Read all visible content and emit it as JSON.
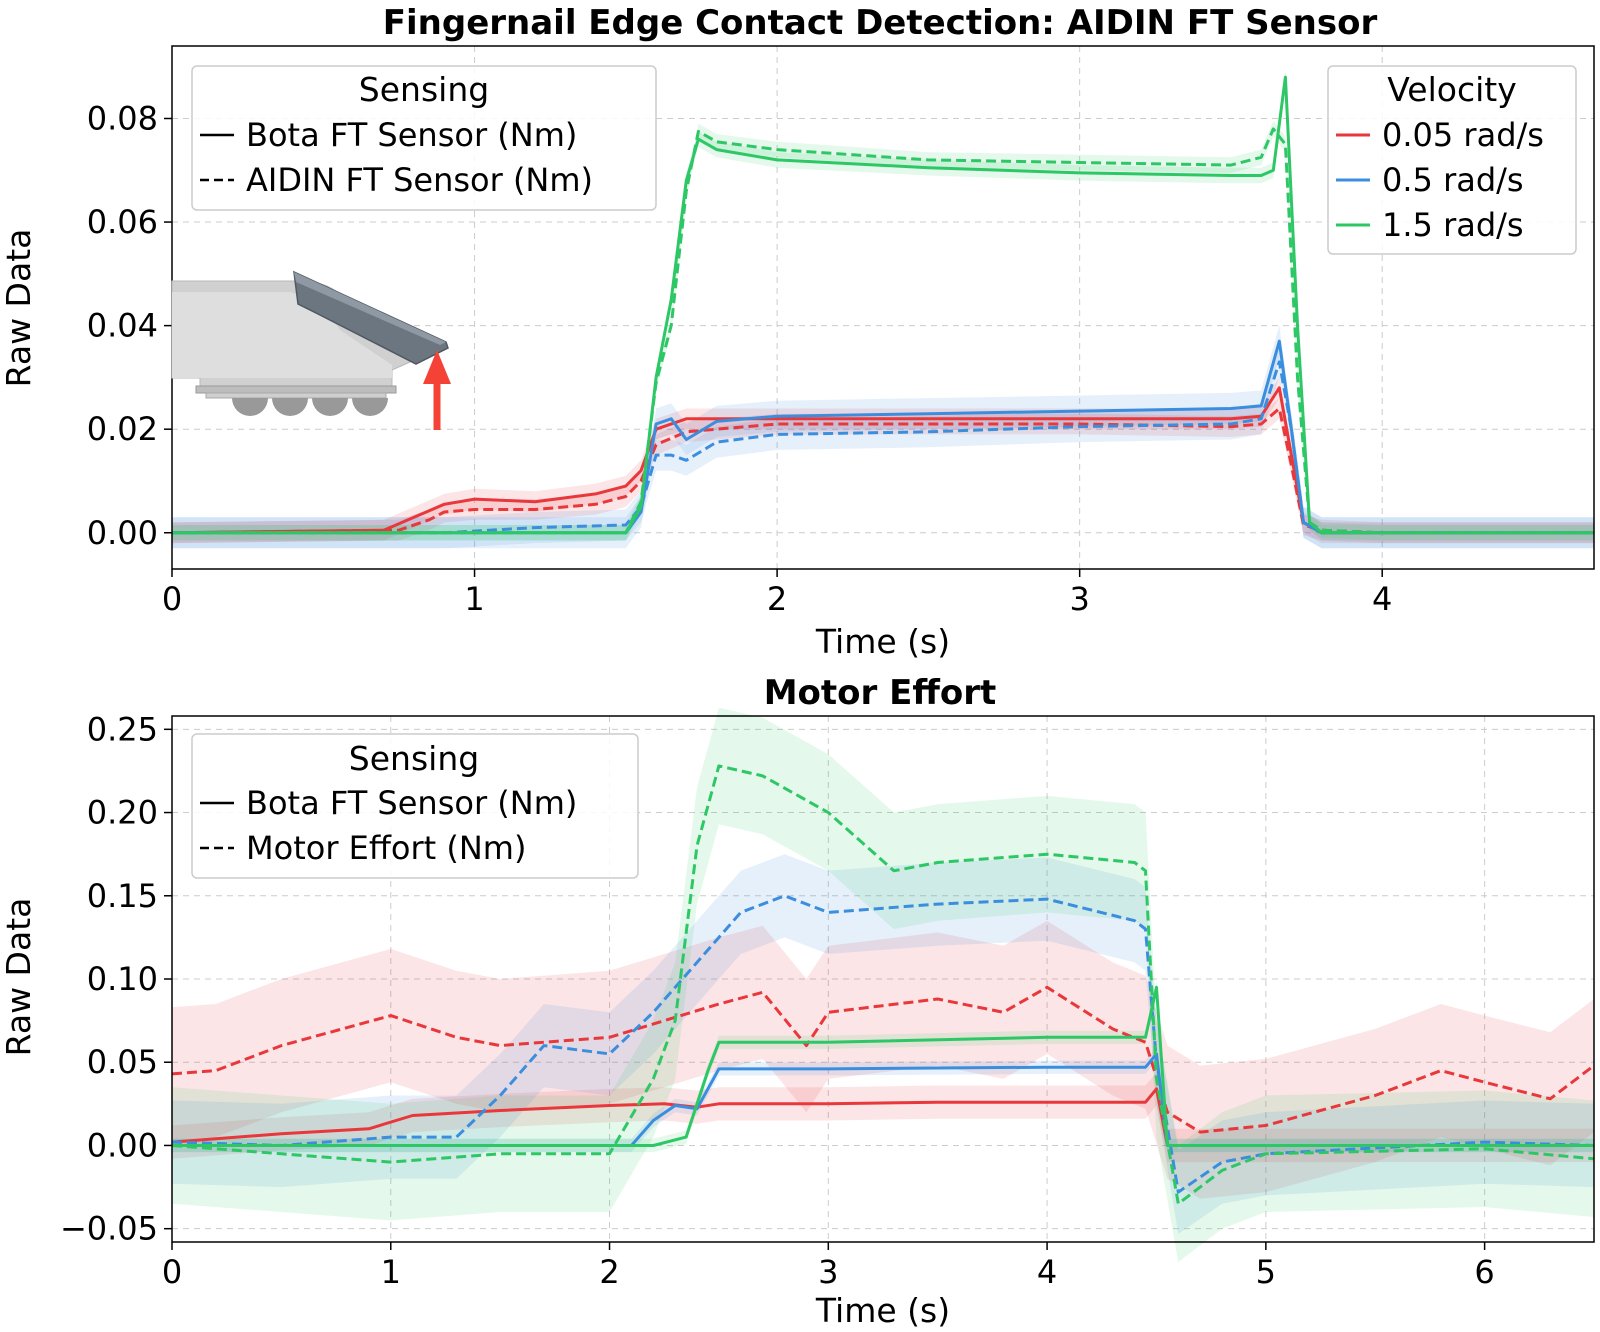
{
  "colors": {
    "red": "#e8383b",
    "blue": "#3b8ede",
    "green": "#2ec766"
  },
  "inset_icon": "fingernail-gripper-arrow-icon",
  "chart_data": [
    {
      "type": "line",
      "title": "Fingernail Edge Contact Detection: AIDIN FT Sensor",
      "xlabel": "Time (s)",
      "ylabel": "Raw Data",
      "xlim": [
        0,
        4.7
      ],
      "ylim": [
        -0.007,
        0.094
      ],
      "xticks": [
        0,
        1,
        2,
        3,
        4
      ],
      "xtick_labels": [
        "0",
        "1",
        "2",
        "3",
        "4"
      ],
      "yticks": [
        0.0,
        0.02,
        0.04,
        0.06,
        0.08
      ],
      "ytick_labels": [
        "0.00",
        "0.02",
        "0.04",
        "0.06",
        "0.08"
      ],
      "grid": true,
      "legends": [
        {
          "title": "Sensing",
          "position": "top-left",
          "entries": [
            {
              "label": "Bota FT Sensor (Nm)",
              "style": "solid"
            },
            {
              "label": "AIDIN FT Sensor (Nm)",
              "style": "dashed"
            }
          ]
        },
        {
          "title": "Velocity",
          "position": "top-right",
          "entries": [
            {
              "label": "0.05 rad/s",
              "color": "red"
            },
            {
              "label": "0.5 rad/s",
              "color": "blue"
            },
            {
              "label": "1.5 rad/s",
              "color": "green"
            }
          ]
        }
      ],
      "series": [
        {
          "velocity": "0.05 rad/s",
          "color": "red",
          "style": "solid",
          "band": 0.002,
          "x": [
            0,
            0.7,
            0.8,
            0.9,
            1.0,
            1.2,
            1.4,
            1.5,
            1.55,
            1.6,
            1.7,
            2.0,
            2.5,
            3.0,
            3.5,
            3.6,
            3.66,
            3.7,
            3.74,
            3.8,
            4.0,
            4.7
          ],
          "y": [
            0.0,
            0.0005,
            0.003,
            0.0055,
            0.0065,
            0.006,
            0.0075,
            0.009,
            0.012,
            0.02,
            0.022,
            0.022,
            0.022,
            0.022,
            0.022,
            0.0225,
            0.028,
            0.015,
            0.002,
            0.0,
            0.0,
            0.0
          ]
        },
        {
          "velocity": "0.05 rad/s",
          "color": "red",
          "style": "dashed",
          "band": 0.002,
          "x": [
            0,
            0.75,
            0.85,
            0.9,
            1.0,
            1.2,
            1.4,
            1.5,
            1.55,
            1.6,
            1.7,
            2.0,
            2.5,
            3.0,
            3.5,
            3.6,
            3.66,
            3.7,
            3.74,
            3.8,
            4.0,
            4.7
          ],
          "y": [
            0.0,
            0.0005,
            0.0025,
            0.004,
            0.0045,
            0.0045,
            0.0055,
            0.007,
            0.01,
            0.017,
            0.0195,
            0.021,
            0.021,
            0.021,
            0.0205,
            0.021,
            0.024,
            0.013,
            0.0015,
            0.0005,
            0.0,
            0.0
          ]
        },
        {
          "velocity": "0.5 rad/s",
          "color": "blue",
          "style": "solid",
          "band": 0.003,
          "x": [
            0,
            1.5,
            1.55,
            1.6,
            1.65,
            1.7,
            1.8,
            2.0,
            2.5,
            3.0,
            3.5,
            3.6,
            3.66,
            3.7,
            3.74,
            3.8,
            4.0,
            4.7
          ],
          "y": [
            0.0,
            0.0,
            0.004,
            0.021,
            0.022,
            0.018,
            0.0215,
            0.0225,
            0.023,
            0.0235,
            0.024,
            0.0245,
            0.037,
            0.02,
            0.002,
            0.0,
            0.0,
            0.0
          ]
        },
        {
          "velocity": "0.5 rad/s",
          "color": "blue",
          "style": "dashed",
          "band": 0.003,
          "x": [
            0,
            0.9,
            1.2,
            1.5,
            1.55,
            1.6,
            1.65,
            1.7,
            1.8,
            2.0,
            2.5,
            3.0,
            3.5,
            3.6,
            3.66,
            3.7,
            3.74,
            3.8,
            4.0,
            4.7
          ],
          "y": [
            0.0,
            0.0,
            0.001,
            0.0015,
            0.005,
            0.015,
            0.015,
            0.014,
            0.0175,
            0.019,
            0.0195,
            0.0205,
            0.021,
            0.022,
            0.033,
            0.02,
            0.002,
            0.0,
            0.0,
            0.0
          ]
        },
        {
          "velocity": "1.5 rad/s",
          "color": "green",
          "style": "solid",
          "band": 0.0015,
          "x": [
            0,
            1.5,
            1.55,
            1.6,
            1.65,
            1.7,
            1.74,
            1.8,
            2.0,
            2.5,
            3.0,
            3.5,
            3.6,
            3.64,
            3.68,
            3.72,
            3.76,
            3.8,
            4.0,
            4.7
          ],
          "y": [
            0.0,
            0.0,
            0.005,
            0.03,
            0.045,
            0.068,
            0.076,
            0.074,
            0.072,
            0.0705,
            0.0695,
            0.069,
            0.069,
            0.07,
            0.088,
            0.04,
            0.002,
            0.0,
            0.0,
            0.0
          ]
        },
        {
          "velocity": "1.5 rad/s",
          "color": "green",
          "style": "dashed",
          "band": 0.0015,
          "x": [
            0,
            1.5,
            1.55,
            1.6,
            1.65,
            1.7,
            1.74,
            1.8,
            2.0,
            2.5,
            3.0,
            3.5,
            3.6,
            3.64,
            3.68,
            3.72,
            3.76,
            3.8,
            4.0,
            4.7
          ],
          "y": [
            0.0,
            0.0,
            0.006,
            0.029,
            0.04,
            0.066,
            0.0775,
            0.0755,
            0.074,
            0.072,
            0.0715,
            0.071,
            0.0725,
            0.078,
            0.075,
            0.03,
            0.002,
            0.0005,
            0.0,
            0.0
          ]
        }
      ]
    },
    {
      "type": "line",
      "title": "Motor Effort",
      "xlabel": "Time (s)",
      "ylabel": "Raw Data",
      "xlim": [
        0,
        6.5
      ],
      "ylim": [
        -0.058,
        0.258
      ],
      "xticks": [
        0,
        1,
        2,
        3,
        4,
        5,
        6
      ],
      "xtick_labels": [
        "0",
        "1",
        "2",
        "3",
        "4",
        "5",
        "6"
      ],
      "yticks": [
        -0.05,
        0.0,
        0.05,
        0.1,
        0.15,
        0.2,
        0.25
      ],
      "ytick_labels": [
        "−0.05",
        "0.00",
        "0.05",
        "0.10",
        "0.15",
        "0.20",
        "0.25"
      ],
      "grid": true,
      "legends": [
        {
          "title": "Sensing",
          "position": "top-left",
          "entries": [
            {
              "label": "Bota FT Sensor (Nm)",
              "style": "solid"
            },
            {
              "label": "Motor Effort (Nm)",
              "style": "dashed"
            }
          ]
        }
      ],
      "series": [
        {
          "velocity": "0.05 rad/s",
          "color": "red",
          "style": "solid",
          "band": 0.01,
          "x": [
            0,
            0.5,
            0.9,
            1.1,
            1.5,
            2.0,
            2.25,
            2.4,
            2.5,
            3.0,
            3.5,
            4.0,
            4.45,
            4.5,
            4.55,
            4.7,
            5.0,
            6.0,
            6.5
          ],
          "y": [
            0.002,
            0.007,
            0.01,
            0.018,
            0.021,
            0.024,
            0.025,
            0.023,
            0.025,
            0.025,
            0.026,
            0.026,
            0.026,
            0.034,
            0.0,
            0.0,
            0.0,
            0.0,
            0.0
          ]
        },
        {
          "velocity": "0.05 rad/s",
          "color": "red",
          "style": "dashed",
          "band": 0.04,
          "x": [
            0,
            0.2,
            0.5,
            1.0,
            1.3,
            1.5,
            2.0,
            2.5,
            2.7,
            2.9,
            3.0,
            3.5,
            3.8,
            4.0,
            4.3,
            4.45,
            4.55,
            4.7,
            5.0,
            5.5,
            5.8,
            6.0,
            6.3,
            6.5
          ],
          "y": [
            0.043,
            0.045,
            0.06,
            0.078,
            0.065,
            0.06,
            0.065,
            0.085,
            0.092,
            0.06,
            0.08,
            0.088,
            0.08,
            0.095,
            0.07,
            0.062,
            0.02,
            0.008,
            0.012,
            0.03,
            0.045,
            0.038,
            0.028,
            0.048
          ]
        },
        {
          "velocity": "0.5 rad/s",
          "color": "blue",
          "style": "solid",
          "band": 0.004,
          "x": [
            0,
            2.1,
            2.2,
            2.3,
            2.4,
            2.5,
            3.0,
            4.0,
            4.45,
            4.5,
            4.55,
            5.0,
            6.5
          ],
          "y": [
            0.0,
            0.0,
            0.015,
            0.024,
            0.022,
            0.046,
            0.046,
            0.047,
            0.047,
            0.055,
            0.0,
            0.0,
            0.0
          ]
        },
        {
          "velocity": "0.5 rad/s",
          "color": "blue",
          "style": "dashed",
          "band": 0.025,
          "x": [
            0,
            0.5,
            1.0,
            1.3,
            1.5,
            1.7,
            2.0,
            2.2,
            2.4,
            2.6,
            2.8,
            3.0,
            3.5,
            4.0,
            4.4,
            4.45,
            4.5,
            4.6,
            4.8,
            5.0,
            6.0,
            6.5
          ],
          "y": [
            0.002,
            0.0,
            0.005,
            0.005,
            0.03,
            0.06,
            0.055,
            0.08,
            0.11,
            0.14,
            0.15,
            0.14,
            0.145,
            0.148,
            0.135,
            0.13,
            0.05,
            -0.028,
            -0.01,
            -0.005,
            0.002,
            0.0
          ]
        },
        {
          "velocity": "1.5 rad/s",
          "color": "green",
          "style": "solid",
          "band": 0.004,
          "x": [
            0,
            2.2,
            2.35,
            2.45,
            2.5,
            3.0,
            4.0,
            4.45,
            4.5,
            4.55,
            5.0,
            6.5
          ],
          "y": [
            0.0,
            0.0,
            0.005,
            0.045,
            0.062,
            0.062,
            0.065,
            0.065,
            0.095,
            0.0,
            0.0,
            0.0
          ]
        },
        {
          "velocity": "1.5 rad/s",
          "color": "green",
          "style": "dashed",
          "band": 0.035,
          "x": [
            0,
            0.5,
            1.0,
            1.5,
            2.0,
            2.2,
            2.3,
            2.4,
            2.5,
            2.7,
            3.0,
            3.3,
            3.5,
            4.0,
            4.4,
            4.45,
            4.5,
            4.6,
            4.8,
            5.0,
            6.0,
            6.5
          ],
          "y": [
            0.0,
            -0.005,
            -0.01,
            -0.005,
            -0.005,
            0.04,
            0.075,
            0.18,
            0.228,
            0.222,
            0.2,
            0.165,
            0.17,
            0.175,
            0.17,
            0.165,
            0.04,
            -0.035,
            -0.015,
            -0.005,
            -0.002,
            -0.008
          ]
        }
      ]
    }
  ]
}
